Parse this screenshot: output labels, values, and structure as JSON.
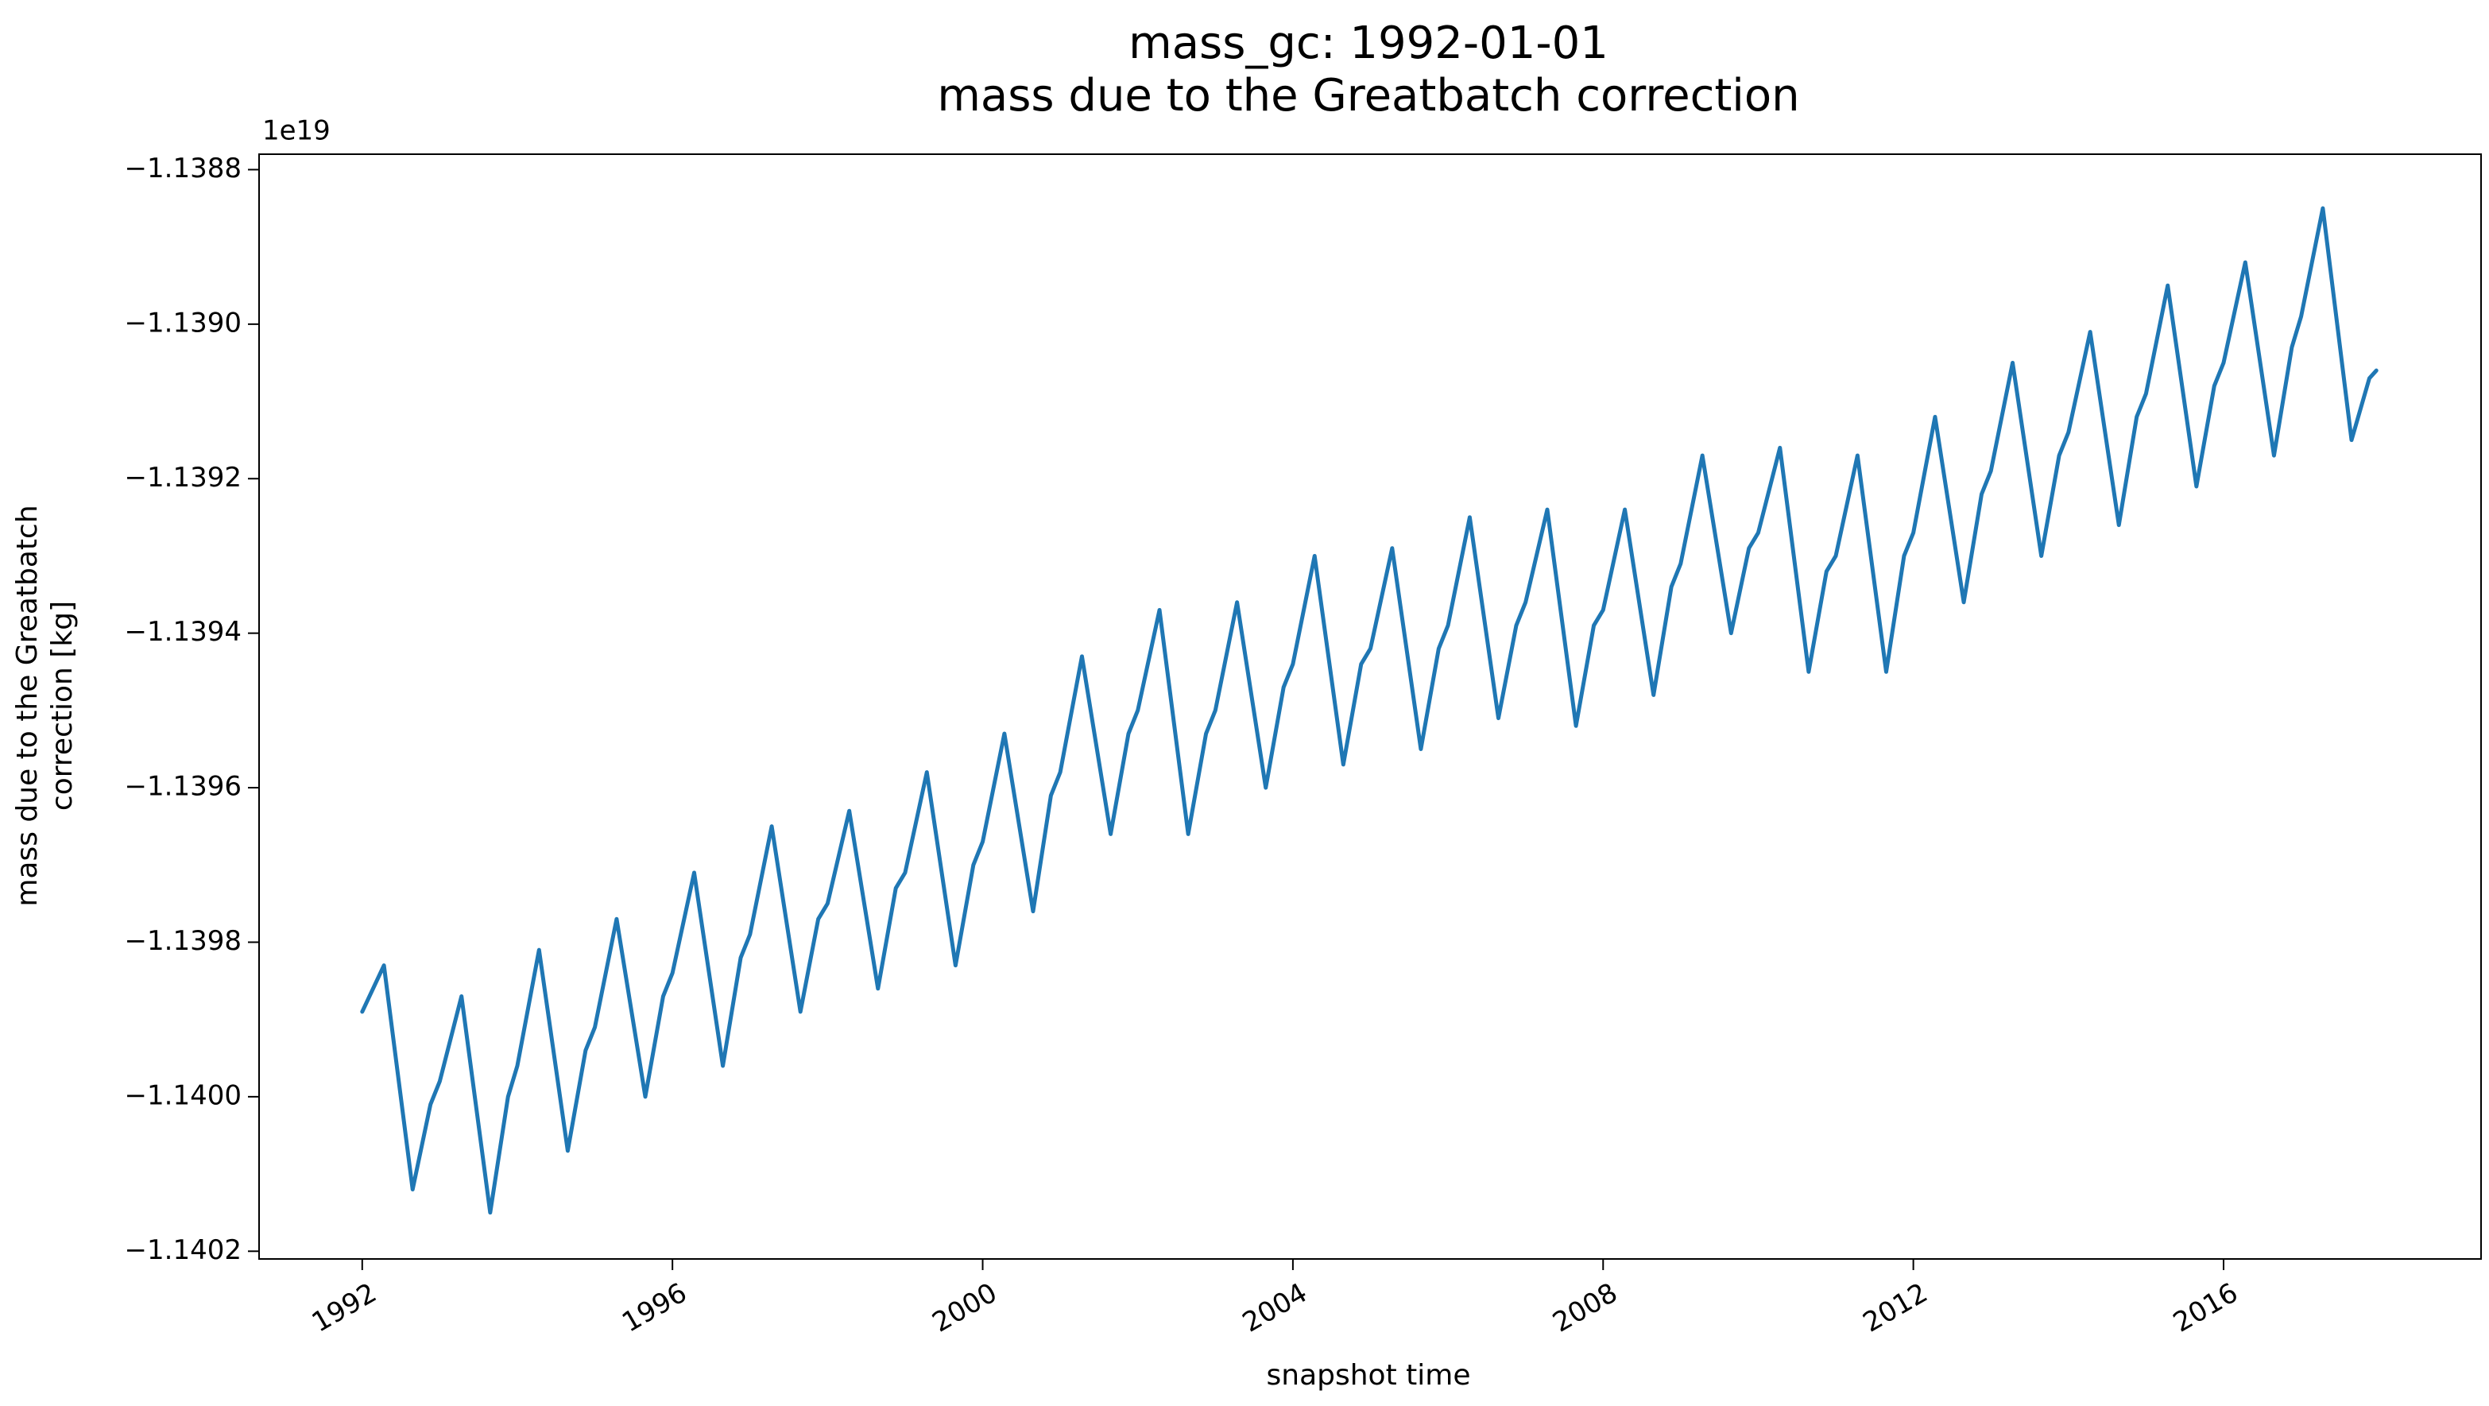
{
  "chart_data": {
    "type": "line",
    "title": "mass_gc: 1992-01-01",
    "subtitle": "mass due to the Greatbatch correction",
    "xlabel": "snapshot time",
    "ylabel": [
      "mass due to the Greatbatch",
      "correction [kg]"
    ],
    "y_offset_label": "1e19",
    "x": [
      1992,
      1992.28,
      1992.65,
      1992.88,
      1993,
      1993.28,
      1993.65,
      1993.88,
      1994,
      1994.28,
      1994.65,
      1994.88,
      1995,
      1995.28,
      1995.65,
      1995.88,
      1996,
      1996.28,
      1996.65,
      1996.88,
      1997,
      1997.28,
      1997.65,
      1997.88,
      1998,
      1998.28,
      1998.65,
      1998.88,
      1999,
      1999.28,
      1999.65,
      1999.88,
      2000,
      2000.28,
      2000.65,
      2000.88,
      2001,
      2001.28,
      2001.65,
      2001.88,
      2002,
      2002.28,
      2002.65,
      2002.88,
      2003,
      2003.28,
      2003.65,
      2003.88,
      2004,
      2004.28,
      2004.65,
      2004.88,
      2005,
      2005.28,
      2005.65,
      2005.88,
      2006,
      2006.28,
      2006.65,
      2006.88,
      2007,
      2007.28,
      2007.65,
      2007.88,
      2008,
      2008.28,
      2008.65,
      2008.88,
      2009,
      2009.28,
      2009.65,
      2009.88,
      2010,
      2010.28,
      2010.65,
      2010.88,
      2011,
      2011.28,
      2011.65,
      2011.88,
      2012,
      2012.28,
      2012.65,
      2012.88,
      2013,
      2013.28,
      2013.65,
      2013.88,
      2014,
      2014.28,
      2014.65,
      2014.88,
      2015,
      2015.28,
      2015.65,
      2015.88,
      2016,
      2016.28,
      2016.65,
      2016.88,
      2017,
      2017.28,
      2017.65,
      2017.88,
      2017.97
    ],
    "series": [
      {
        "name": "mass_gc",
        "color": "#1f77b4",
        "values": [
          -1.13989,
          -1.13983,
          -1.14012,
          -1.14001,
          -1.13998,
          -1.13987,
          -1.14015,
          -1.14,
          -1.13996,
          -1.13981,
          -1.14007,
          -1.13994,
          -1.13991,
          -1.13977,
          -1.14,
          -1.13987,
          -1.13984,
          -1.13971,
          -1.13996,
          -1.13982,
          -1.13979,
          -1.13965,
          -1.13989,
          -1.13977,
          -1.13975,
          -1.13963,
          -1.13986,
          -1.13973,
          -1.13971,
          -1.13958,
          -1.13983,
          -1.1397,
          -1.13967,
          -1.13953,
          -1.13976,
          -1.13961,
          -1.13958,
          -1.13943,
          -1.13966,
          -1.13953,
          -1.1395,
          -1.13937,
          -1.13966,
          -1.13953,
          -1.1395,
          -1.13936,
          -1.1396,
          -1.13947,
          -1.13944,
          -1.1393,
          -1.13957,
          -1.13944,
          -1.13942,
          -1.13929,
          -1.13955,
          -1.13942,
          -1.13939,
          -1.13925,
          -1.13951,
          -1.13939,
          -1.13936,
          -1.13924,
          -1.13952,
          -1.13939,
          -1.13937,
          -1.13924,
          -1.13948,
          -1.13934,
          -1.13931,
          -1.13917,
          -1.1394,
          -1.13929,
          -1.13927,
          -1.13916,
          -1.13945,
          -1.13932,
          -1.1393,
          -1.13917,
          -1.13945,
          -1.1393,
          -1.13927,
          -1.13912,
          -1.13936,
          -1.13922,
          -1.13919,
          -1.13905,
          -1.1393,
          -1.13917,
          -1.13914,
          -1.13901,
          -1.13926,
          -1.13912,
          -1.13909,
          -1.13895,
          -1.13921,
          -1.13908,
          -1.13905,
          -1.13892,
          -1.13917,
          -1.13903,
          -1.13899,
          -1.13885,
          -1.13915,
          -1.13907,
          -1.13906
        ]
      }
    ],
    "xlim": [
      1990.67,
      2019.32
    ],
    "xticks": [
      1992,
      1996,
      2000,
      2004,
      2008,
      2012,
      2016
    ],
    "ylim": [
      -1.14021,
      -1.13878
    ],
    "yticks": [
      {
        "value": -1.1388,
        "label": "−1.1388"
      },
      {
        "value": -1.139,
        "label": "−1.1390"
      },
      {
        "value": -1.1392,
        "label": "−1.1392"
      },
      {
        "value": -1.1394,
        "label": "−1.1394"
      },
      {
        "value": -1.1396,
        "label": "−1.1396"
      },
      {
        "value": -1.1398,
        "label": "−1.1398"
      },
      {
        "value": -1.14,
        "label": "−1.1400"
      },
      {
        "value": -1.1402,
        "label": "−1.1402"
      }
    ],
    "grid": false
  }
}
